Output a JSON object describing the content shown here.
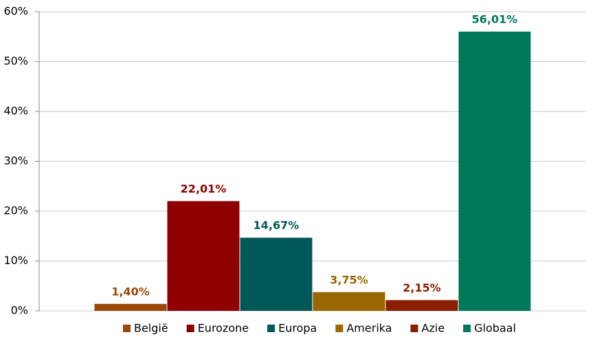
{
  "chart_data": {
    "type": "bar",
    "series": [
      {
        "name": "België",
        "color": "#9a4806",
        "values": [
          1.4
        ],
        "value_labels": [
          "1,40%"
        ]
      },
      {
        "name": "Eurozone",
        "color": "#8f0000",
        "values": [
          22.01
        ],
        "value_labels": [
          "22,01%"
        ]
      },
      {
        "name": "Europa",
        "color": "#005858",
        "values": [
          14.67
        ],
        "value_labels": [
          "14,67%"
        ]
      },
      {
        "name": "Amerika",
        "color": "#996600",
        "values": [
          3.75
        ],
        "value_labels": [
          "3,75%"
        ]
      },
      {
        "name": "Azie",
        "color": "#8a1e00",
        "values": [
          2.15
        ],
        "value_labels": [
          "2,15%"
        ]
      },
      {
        "name": "Globaal",
        "color": "#00795a",
        "values": [
          56.01
        ],
        "value_labels": [
          "56,01%"
        ]
      }
    ],
    "ylim": [
      0,
      60
    ],
    "yticks": [
      {
        "value": 0,
        "label": "0%"
      },
      {
        "value": 10,
        "label": "10%"
      },
      {
        "value": 20,
        "label": "20%"
      },
      {
        "value": 30,
        "label": "30%"
      },
      {
        "value": 40,
        "label": "40%"
      },
      {
        "value": 50,
        "label": "50%"
      },
      {
        "value": 60,
        "label": "60%"
      }
    ],
    "grid": true,
    "legend": "bottom"
  }
}
